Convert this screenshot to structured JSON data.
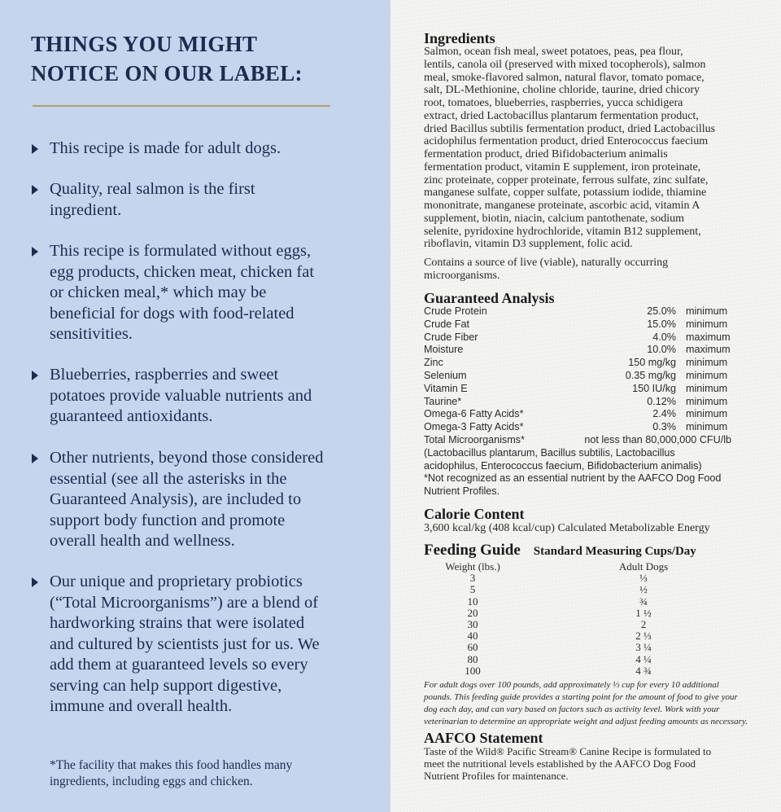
{
  "left": {
    "title": [
      "THINGS YOU MIGHT",
      "NOTICE ON OUR LABEL:"
    ],
    "bullets": [
      [
        "This recipe is made for adult dogs."
      ],
      [
        "Quality, real salmon is the first",
        "ingredient."
      ],
      [
        "This recipe is formulated without eggs,",
        "egg products, chicken meat, chicken fat",
        "or chicken meal,* which may be",
        "beneficial for dogs with food-related",
        "sensitivities."
      ],
      [
        "Blueberries, raspberries and sweet",
        "potatoes provide valuable nutrients and",
        "guaranteed antioxidants."
      ],
      [
        "Other nutrients, beyond those considered",
        "essential (see all the asterisks in the",
        "Guaranteed Analysis), are included to",
        "support body function and promote",
        "overall health and wellness."
      ],
      [
        "Our unique and proprietary probiotics",
        "(“Total Microorganisms”) are a blend of",
        "hardworking strains that were isolated",
        "and cultured by scientists just for us. We",
        "add them at guaranteed levels so every",
        "serving can help support digestive,",
        "immune and overall health."
      ]
    ],
    "footnote": [
      "*The facility that makes this food handles many",
      "ingredients, including eggs and chicken."
    ]
  },
  "ingredients": {
    "heading": "Ingredients",
    "lines": [
      "Salmon, ocean fish meal, sweet potatoes, peas, pea flour,",
      "lentils, canola oil (preserved with mixed tocopherols), salmon",
      "meal, smoke-flavored salmon, natural flavor, tomato pomace,",
      "salt, DL-Methionine, choline chloride, taurine, dried chicory",
      "root, tomatoes, blueberries, raspberries, yucca schidigera",
      "extract, dried Lactobacillus plantarum fermentation product,",
      "dried Bacillus subtilis fermentation product, dried Lactobacillus",
      "acidophilus fermentation product, dried Enterococcus faecium",
      "fermentation product, dried Bifidobacterium animalis",
      "fermentation product, vitamin E supplement, iron proteinate,",
      "zinc proteinate, copper proteinate, ferrous sulfate, zinc sulfate,",
      "manganese sulfate, copper sulfate, potassium iodide, thiamine",
      "mononitrate, manganese proteinate, ascorbic acid, vitamin A",
      "supplement, biotin, niacin, calcium pantothenate, sodium",
      "selenite, pyridoxine hydrochloride, vitamin B12 supplement,",
      "riboflavin, vitamin D3 supplement, folic acid."
    ],
    "probiotic_note": [
      "Contains a source of live (viable), naturally occurring",
      "microorganisms."
    ]
  },
  "analysis": {
    "heading": "Guaranteed Analysis",
    "rows": [
      {
        "name": "Crude Protein",
        "value": "25.0%",
        "type": "minimum"
      },
      {
        "name": "Crude Fat",
        "value": "15.0%",
        "type": "minimum"
      },
      {
        "name": "Crude Fiber",
        "value": "4.0%",
        "type": "maximum"
      },
      {
        "name": "Moisture",
        "value": "10.0%",
        "type": "maximum"
      },
      {
        "name": "Zinc",
        "value": "150 mg/kg",
        "type": "minimum"
      },
      {
        "name": "Selenium",
        "value": "0.35 mg/kg",
        "type": "minimum"
      },
      {
        "name": "Vitamin E",
        "value": "150 IU/kg",
        "type": "minimum"
      },
      {
        "name": "Taurine*",
        "value": "0.12%",
        "type": "minimum"
      },
      {
        "name": "Omega-6 Fatty Acids*",
        "value": "2.4%",
        "type": "minimum"
      },
      {
        "name": "Omega-3 Fatty Acids*",
        "value": "0.3%",
        "type": "minimum"
      }
    ],
    "micro_name": "Total Microorganisms*",
    "micro_value": "not less than 80,000,000 CFU/lb",
    "notes": [
      "(Lactobacillus plantarum, Bacillus subtilis, Lactobacillus",
      "acidophilus, Enterococcus faecium, Bifidobacterium animalis)",
      "*Not recognized as an essential nutrient by the AAFCO Dog Food",
      "Nutrient Profiles."
    ]
  },
  "calorie": {
    "heading": "Calorie Content",
    "text": "3,600 kcal/kg (408 kcal/cup) Calculated Metabolizable Energy"
  },
  "feeding": {
    "heading": "Feeding Guide",
    "subheading": "Standard Measuring Cups/Day",
    "col1": "Weight (lbs.)",
    "col2": "Adult Dogs",
    "rows": [
      [
        "3",
        "⅓"
      ],
      [
        "5",
        "½"
      ],
      [
        "10",
        "¾"
      ],
      [
        "20",
        "1 ½"
      ],
      [
        "30",
        "2"
      ],
      [
        "40",
        "2 ⅓"
      ],
      [
        "60",
        "3 ¼"
      ],
      [
        "80",
        "4 ¼"
      ],
      [
        "100",
        "4 ¾"
      ]
    ],
    "note": [
      "For adult dogs over 100 pounds, add approximately ⅓ cup for every 10 additional",
      "pounds. This feeding guide provides a starting point for the amount of food to give your",
      "dog each day, and can vary based on factors such as activity level. Work with your",
      "veterinarian to determine an appropriate weight and adjust feeding amounts as necessary."
    ]
  },
  "aafco": {
    "heading": "AAFCO Statement",
    "lines": [
      "Taste of the Wild® Pacific Stream® Canine Recipe is formulated to",
      "meet the nutritional levels established by the AAFCO Dog Food",
      "Nutrient Profiles for maintenance."
    ]
  }
}
